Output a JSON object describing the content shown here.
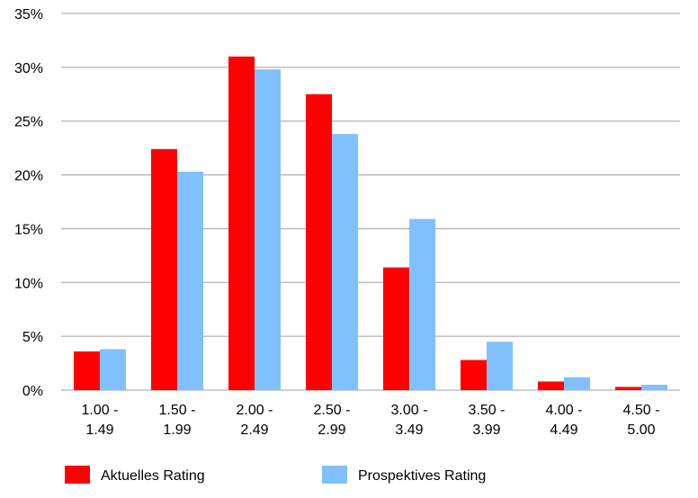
{
  "chart_data": {
    "type": "bar",
    "title": "",
    "xlabel": "",
    "ylabel": "",
    "categories": [
      [
        "1.00 -",
        "1.49"
      ],
      [
        "1.50 -",
        "1.99"
      ],
      [
        "2.00 -",
        "2.49"
      ],
      [
        "2.50 -",
        "2.99"
      ],
      [
        "3.00 -",
        "3.49"
      ],
      [
        "3.50 -",
        "3.99"
      ],
      [
        "4.00 -",
        "4.49"
      ],
      [
        "4.50 -",
        "5.00"
      ]
    ],
    "series": [
      {
        "name": "Aktuelles Rating",
        "color": "#ff0000",
        "values": [
          3.6,
          22.4,
          31.0,
          27.5,
          11.4,
          2.8,
          0.8,
          0.3
        ]
      },
      {
        "name": "Prospektives Rating",
        "color": "#80c0ff",
        "values": [
          3.8,
          20.3,
          29.8,
          23.8,
          15.9,
          4.5,
          1.2,
          0.5
        ]
      }
    ],
    "ylim": [
      0,
      35
    ],
    "yticks": [
      0,
      5,
      10,
      15,
      20,
      25,
      30,
      35
    ],
    "ytick_labels": [
      "0%",
      "5%",
      "10%",
      "15%",
      "20%",
      "25%",
      "30%",
      "35%"
    ],
    "grid": true,
    "legend_position": "bottom"
  }
}
